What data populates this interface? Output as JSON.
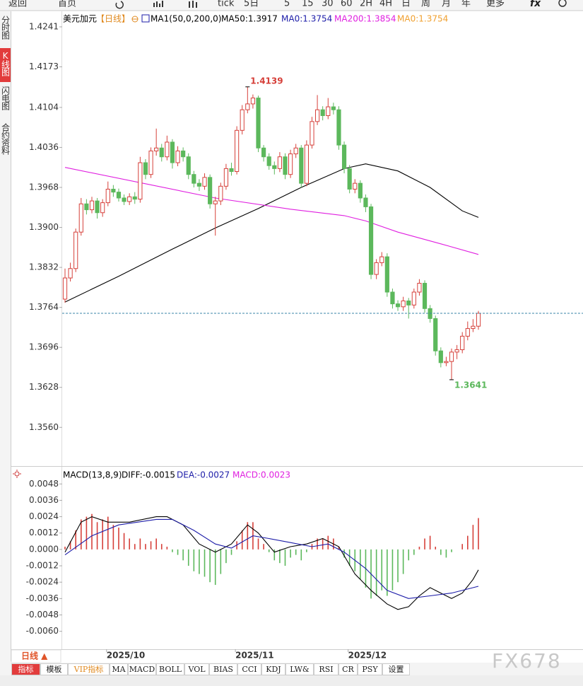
{
  "toolbar": [
    "返回",
    "首页",
    "tick",
    "5日",
    "5",
    "15",
    "30",
    "60",
    "2H",
    "4H",
    "日",
    "周",
    "月",
    "年",
    "更多"
  ],
  "sidebar": [
    "分时图",
    "K线图",
    "闪电图",
    "合约资料"
  ],
  "chart_data": [
    {
      "type": "candlestick",
      "title": "美元加元",
      "period": "【日线】",
      "indicator": "MA1(50,0,200,0)",
      "header_labels": [
        {
          "text": "MA0:1.3754",
          "color": "#1c1ca8"
        },
        {
          "text": "MA0:1.3754",
          "color": "#f0a030"
        }
      ],
      "up_color": "#d6403a",
      "down_color": "#5cb85c",
      "last_line_color": "#3a86a8",
      "grid": false,
      "ylim": [
        1.3499,
        1.4265
      ],
      "yticks": [
        1.4241,
        1.4173,
        1.4104,
        1.4036,
        1.3968,
        {
          "value": 1.39,
          "label": "1.3900"
        },
        1.3832,
        1.3764,
        1.3696,
        1.3628,
        {
          "value": 1.356,
          "label": "1.3560"
        }
      ],
      "candles": {
        "open": [
          1.3778,
          1.3814,
          1.383,
          1.3892,
          1.394,
          1.393,
          1.3945,
          1.3925,
          1.3942,
          1.3965,
          1.396,
          1.395,
          1.3944,
          1.3952,
          1.3948,
          1.401,
          1.399,
          1.403,
          1.4035,
          1.402,
          1.4045,
          1.401,
          1.403,
          1.402,
          1.399,
          1.3975,
          1.397,
          1.3985,
          1.394,
          1.3945,
          1.397,
          1.4,
          1.3995,
          1.4065,
          1.41,
          1.411,
          1.412,
          1.4035,
          1.402,
          1.4005,
          1.4,
          1.402,
          1.399,
          1.4025,
          1.4035,
          1.3975,
          1.404,
          1.408,
          1.41,
          1.409,
          1.4105,
          1.41,
          1.404,
          1.4,
          1.3965,
          1.3975,
          1.395,
          1.3935,
          1.382,
          1.384,
          1.385,
          1.379,
          1.377,
          1.3765,
          1.3775,
          1.3768,
          1.379,
          1.3805,
          1.3762,
          1.3745,
          1.369,
          1.367,
          1.3672,
          1.3688,
          1.3692,
          1.3715,
          1.3728,
          1.3732
        ],
        "high": [
          1.383,
          1.384,
          1.3898,
          1.395,
          1.3948,
          1.3952,
          1.395,
          1.3948,
          1.3978,
          1.3972,
          1.3966,
          1.3956,
          1.3958,
          1.396,
          1.402,
          1.4016,
          1.4036,
          1.4068,
          1.4042,
          1.4056,
          1.405,
          1.4038,
          1.4036,
          1.4026,
          1.3996,
          1.3982,
          1.3992,
          1.399,
          1.3952,
          1.3976,
          1.4008,
          1.401,
          1.4072,
          1.4108,
          1.4139,
          1.4126,
          1.4124,
          1.404,
          1.4026,
          1.4012,
          1.4028,
          1.4026,
          1.4032,
          1.4042,
          1.404,
          1.4048,
          1.4088,
          1.4125,
          1.4106,
          1.412,
          1.4112,
          1.4106,
          1.4046,
          1.4006,
          1.3982,
          1.398,
          1.3956,
          1.394,
          1.3846,
          1.3858,
          1.3856,
          1.3796,
          1.3776,
          1.3782,
          1.378,
          1.3796,
          1.3812,
          1.381,
          1.3768,
          1.375,
          1.3696,
          1.368,
          1.3694,
          1.37,
          1.3722,
          1.374,
          1.3744,
          1.3758
        ],
        "low": [
          1.3772,
          1.3808,
          1.3824,
          1.3886,
          1.3922,
          1.3924,
          1.3915,
          1.3918,
          1.3936,
          1.3952,
          1.3944,
          1.3938,
          1.3938,
          1.394,
          1.3942,
          1.3982,
          1.3984,
          1.4022,
          1.4012,
          1.4014,
          1.4,
          1.4004,
          1.4012,
          1.3982,
          1.3968,
          1.3962,
          1.3964,
          1.3932,
          1.3886,
          1.3938,
          1.3964,
          1.3988,
          1.399,
          1.4058,
          1.4094,
          1.4102,
          1.4028,
          1.4012,
          1.3998,
          1.399,
          1.3994,
          1.3982,
          1.3984,
          1.4018,
          1.3968,
          1.397,
          1.4034,
          1.4074,
          1.4082,
          1.4084,
          1.4092,
          1.4032,
          1.3992,
          1.3958,
          1.3958,
          1.3942,
          1.3926,
          1.3812,
          1.3812,
          1.3834,
          1.3782,
          1.3762,
          1.3758,
          1.3758,
          1.3745,
          1.3762,
          1.3784,
          1.3755,
          1.3738,
          1.3682,
          1.3662,
          1.3664,
          1.3641,
          1.3676,
          1.3686,
          1.3708,
          1.3722,
          1.3726
        ],
        "close": [
          1.3814,
          1.383,
          1.3892,
          1.394,
          1.393,
          1.3945,
          1.3925,
          1.3942,
          1.3965,
          1.396,
          1.395,
          1.3944,
          1.3952,
          1.3948,
          1.401,
          1.399,
          1.403,
          1.4035,
          1.402,
          1.4045,
          1.401,
          1.403,
          1.402,
          1.399,
          1.3975,
          1.397,
          1.3985,
          1.394,
          1.3945,
          1.397,
          1.4,
          1.3995,
          1.4065,
          1.41,
          1.411,
          1.412,
          1.4035,
          1.402,
          1.4005,
          1.4,
          1.402,
          1.399,
          1.4025,
          1.4035,
          1.3975,
          1.404,
          1.408,
          1.41,
          1.409,
          1.4105,
          1.41,
          1.404,
          1.4,
          1.3965,
          1.3975,
          1.395,
          1.3935,
          1.382,
          1.384,
          1.385,
          1.379,
          1.377,
          1.3765,
          1.3775,
          1.3768,
          1.379,
          1.3805,
          1.3762,
          1.3745,
          1.369,
          1.367,
          1.3672,
          1.3688,
          1.3692,
          1.3715,
          1.3728,
          1.3732,
          1.3754
        ]
      },
      "series": [
        {
          "name": "MA50:1.3917",
          "color": "#000000",
          "x": [
            0,
            10,
            20,
            28,
            36,
            44,
            52,
            56,
            62,
            68,
            74,
            77
          ],
          "values": [
            1.3773,
            1.3817,
            1.3863,
            1.3899,
            1.3932,
            1.3968,
            1.4,
            1.4008,
            1.3996,
            1.3968,
            1.3928,
            1.3917
          ]
        },
        {
          "name": "MA200:1.3854",
          "color": "#e020e0",
          "x": [
            0,
            14,
            28,
            42,
            52,
            56,
            62,
            70,
            77
          ],
          "values": [
            1.4002,
            1.3976,
            1.395,
            1.3931,
            1.392,
            1.3911,
            1.3892,
            1.3872,
            1.3854
          ]
        }
      ]
    },
    {
      "type": "macd",
      "title": "MACD(13,8,9)",
      "grid": false,
      "up_color": "#d6403a",
      "down_color": "#5cb85c",
      "ylim": [
        -0.0069,
        0.0058
      ],
      "yticks": [
        0.0048,
        0.0036,
        0.0024,
        0.0012,
        {
          "value": 0,
          "label": "0.0000"
        },
        -0.0012,
        -0.0024,
        -0.0036,
        -0.0048,
        {
          "value": -0.006,
          "label": "-0.0060"
        }
      ],
      "xticks": [
        {
          "value": 8,
          "label": "2025/10"
        },
        {
          "value": 32,
          "label": "2025/11"
        },
        {
          "value": 53,
          "label": "2025/12"
        }
      ],
      "series": [
        {
          "name": "DIFF:-0.0015",
          "color": "#000000",
          "x": [
            0,
            3,
            5,
            8,
            12,
            17,
            19,
            22,
            25,
            28,
            31,
            34,
            36,
            39,
            42,
            45,
            48,
            51,
            54,
            57,
            60,
            62,
            64,
            66,
            68,
            70,
            72,
            74,
            76,
            77
          ],
          "values": [
            -0.0002,
            0.002,
            0.0024,
            0.002,
            0.002,
            0.0024,
            0.0024,
            0.0018,
            0.0004,
            -0.0002,
            0.0004,
            0.0018,
            0.0012,
            -0.0002,
            0.0002,
            0.0004,
            0.0008,
            0.0002,
            -0.0018,
            -0.003,
            -0.004,
            -0.0044,
            -0.0042,
            -0.0034,
            -0.0028,
            -0.0032,
            -0.0036,
            -0.0032,
            -0.0022,
            -0.0015
          ]
        },
        {
          "name": "DEA:-0.0027",
          "color": "#1c1ca8",
          "x": [
            0,
            5,
            10,
            17,
            20,
            24,
            28,
            31,
            35,
            38,
            42,
            46,
            49,
            52,
            56,
            60,
            64,
            68,
            72,
            77
          ],
          "values": [
            -0.0004,
            0.001,
            0.0018,
            0.0022,
            0.0022,
            0.0014,
            0.0004,
            0.0001,
            0.001,
            0.0008,
            0.0005,
            0.0002,
            0.0004,
            -0.0002,
            -0.0014,
            -0.003,
            -0.0036,
            -0.0034,
            -0.0032,
            -0.0027
          ]
        },
        {
          "name": "MACD:0.0023",
          "color": "#e020e0",
          "values": [
            0.0002,
            0.0006,
            0.0014,
            0.0022,
            0.0024,
            0.0026,
            0.002,
            0.0022,
            0.0024,
            0.0018,
            0.0016,
            0.0012,
            0.0008,
            0.0004,
            0.0008,
            0.0004,
            0.0006,
            0.0008,
            0.0004,
            0.0002,
            -0.0002,
            -0.0004,
            -0.0008,
            -0.0012,
            -0.0016,
            -0.0018,
            -0.002,
            -0.0024,
            -0.0026,
            -0.0018,
            -0.001,
            -0.0004,
            0.0006,
            0.0014,
            0.002,
            0.002,
            0.0008,
            0.0004,
            -0.0002,
            -0.0008,
            -0.001,
            -0.0012,
            -0.0006,
            -0.0004,
            -0.0008,
            -0.0002,
            0.0004,
            0.0008,
            0.0008,
            0.001,
            0.0008,
            0.0002,
            -0.0006,
            -0.0012,
            -0.0016,
            -0.0022,
            -0.0028,
            -0.0036,
            -0.0034,
            -0.003,
            -0.0034,
            -0.003,
            -0.0024,
            -0.0018,
            -0.0008,
            -0.0004,
            0.0002,
            0.0008,
            0.001,
            0.0002,
            -0.0004,
            -0.0006,
            -0.0002,
            0.0,
            0.0004,
            0.001,
            0.0018,
            0.0023
          ]
        }
      ]
    }
  ],
  "period_selector": "日线 ▲",
  "tabs": [
    "指标",
    "模板",
    "VIP指标",
    "MA",
    "MACD",
    "BOLL",
    "VOL",
    "BIAS",
    "CCI",
    "KDJ",
    "LW&",
    "RSI",
    "CR",
    "PSY",
    "设置"
  ],
  "watermark": "FX678"
}
